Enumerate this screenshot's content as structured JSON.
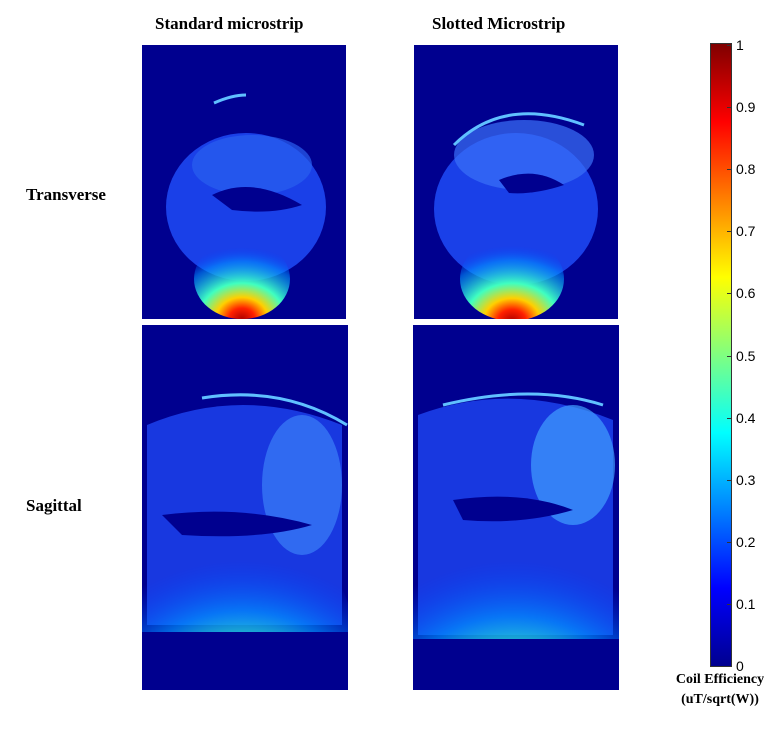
{
  "columns": {
    "standard": "Standard microstrip",
    "slotted": "Slotted Microstrip"
  },
  "rows": {
    "transverse": "Transverse",
    "sagittal": "Sagittal"
  },
  "colorbar": {
    "ticks": [
      "0",
      "0.1",
      "0.2",
      "0.3",
      "0.4",
      "0.5",
      "0.6",
      "0.7",
      "0.8",
      "0.9",
      "1"
    ],
    "label_line1": "Coil Efficiency",
    "label_line2": "(uT/sqrt(W))",
    "colormap": "jet",
    "background_color": "#00008f"
  }
}
